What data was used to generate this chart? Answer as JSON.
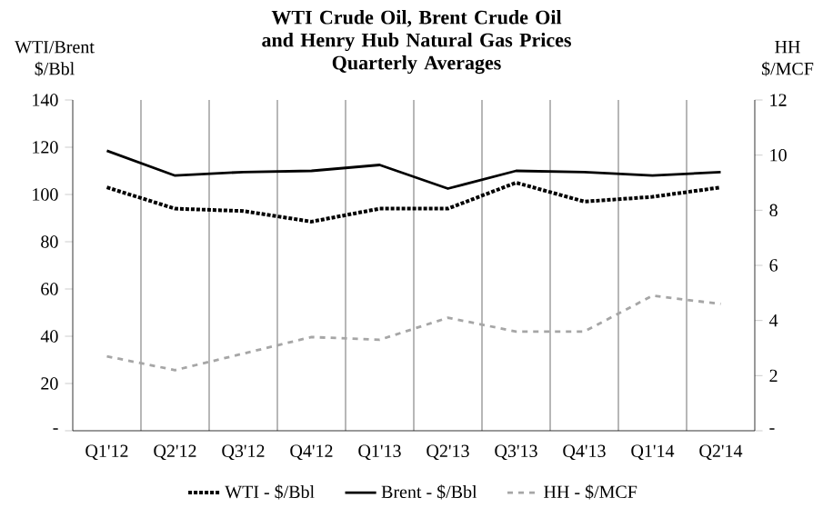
{
  "chart_data": {
    "type": "line",
    "title": "WTI Crude Oil, Brent Crude Oil and Henry Hub Natural Gas Prices",
    "subtitle": "Quarterly Averages",
    "ylabel": "WTI/Brent $/Bbl",
    "y2label": "HH $/MCF",
    "categories": [
      "Q1'12",
      "Q2'12",
      "Q3'12",
      "Q4'12",
      "Q1'13",
      "Q2'13",
      "Q3'13",
      "Q4'13",
      "Q1'14",
      "Q2'14"
    ],
    "series": [
      {
        "name": "WTI - $/Bbl",
        "color": "#000000",
        "line_style": "dotted",
        "values": [
          103,
          94,
          93,
          88.5,
          94,
          94,
          105,
          97,
          99,
          103
        ]
      },
      {
        "name": "Brent - $/Bbl",
        "color": "#000000",
        "line_style": "solid",
        "values": [
          118.5,
          108,
          109.5,
          110,
          112.5,
          102.5,
          110,
          109.5,
          108,
          109.5
        ]
      },
      {
        "name": "HH - $/MCF",
        "color": "#a6a6a6",
        "line_style": "dashed",
        "axis": "y2",
        "values": [
          2.7,
          2.2,
          2.8,
          3.4,
          3.3,
          4.1,
          3.6,
          3.6,
          4.9,
          4.6
        ]
      }
    ],
    "ylim": [
      0,
      140
    ],
    "yticks": [
      {
        "value": 0,
        "label": "-"
      },
      20,
      40,
      60,
      80,
      100,
      120,
      140
    ],
    "y2lim": [
      0,
      12
    ],
    "y2ticks": [
      {
        "value": 0,
        "label": "-"
      },
      2,
      4,
      6,
      8,
      10,
      12
    ],
    "grid": "x",
    "legend": "bottom",
    "marker": "none"
  }
}
